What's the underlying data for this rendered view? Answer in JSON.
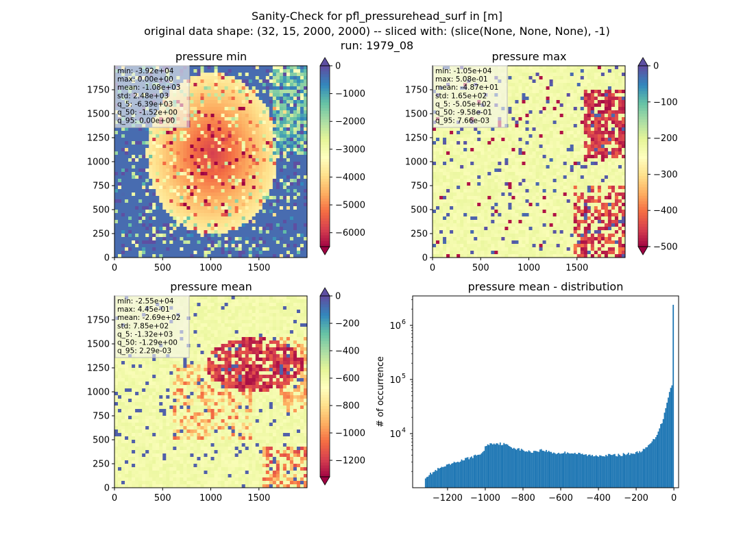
{
  "figure": {
    "title_lines": [
      "Sanity-Check for pfl_pressurehead_surf in [m]",
      "original data shape: (32, 15, 2000, 2000) -- sliced with: (slice(None, None, None), -1)",
      "run: 1979_08"
    ]
  },
  "colors": {
    "spectral": [
      "#9e0142",
      "#d53e4f",
      "#f46d43",
      "#fdae61",
      "#fee08b",
      "#ffffbf",
      "#e6f598",
      "#abdda4",
      "#66c2a5",
      "#3288bd",
      "#5e4fa2"
    ],
    "hist_bar": "#1f77b4"
  },
  "chart_data": [
    {
      "type": "heatmap",
      "title": "pressure min",
      "x_ticks": [
        "0",
        "500",
        "1000",
        "1500"
      ],
      "y_ticks": [
        "0",
        "250",
        "500",
        "750",
        "1000",
        "1250",
        "1500",
        "1750"
      ],
      "xlim": [
        0,
        2000
      ],
      "ylim": [
        0,
        2000
      ],
      "colorbar": {
        "vmin": -6500,
        "vmax": 0,
        "ticks": [
          "0",
          "−1000",
          "−2000",
          "−3000",
          "−4000",
          "−5000",
          "−6000"
        ],
        "tick_values": [
          0,
          -1000,
          -2000,
          -3000,
          -4000,
          -5000,
          -6000
        ],
        "extend": "both",
        "cmap": "Spectral"
      },
      "stats": [
        "min: -3.92e+04",
        "max: 0.00e+00",
        "mean: -1.08e+03",
        "std: 2.48e+03",
        "q_5: -6.39e+03",
        "q_50: -1.52e+00",
        "q_95: 0.00e+00"
      ]
    },
    {
      "type": "heatmap",
      "title": "pressure max",
      "x_ticks": [
        "0",
        "500",
        "1000",
        "1500"
      ],
      "y_ticks": [
        "0",
        "250",
        "500",
        "750",
        "1000",
        "1250",
        "1500",
        "1750"
      ],
      "xlim": [
        0,
        2000
      ],
      "ylim": [
        0,
        2000
      ],
      "colorbar": {
        "vmin": -500,
        "vmax": 0,
        "ticks": [
          "0",
          "−100",
          "−200",
          "−300",
          "−400",
          "−500"
        ],
        "tick_values": [
          0,
          -100,
          -200,
          -300,
          -400,
          -500
        ],
        "extend": "both",
        "cmap": "Spectral"
      },
      "stats": [
        "min: -1.05e+04",
        "max: 5.08e-01",
        "mean: -4.87e+01",
        "std: 1.65e+02",
        "q_5: -5.05e+02",
        "q_50: -9.58e-01",
        "q_95: 7.66e-03"
      ]
    },
    {
      "type": "heatmap",
      "title": "pressure mean",
      "x_ticks": [
        "0",
        "500",
        "1000",
        "1500"
      ],
      "y_ticks": [
        "0",
        "250",
        "500",
        "750",
        "1000",
        "1250",
        "1500",
        "1750"
      ],
      "xlim": [
        0,
        2000
      ],
      "ylim": [
        0,
        2000
      ],
      "colorbar": {
        "vmin": -1320,
        "vmax": 0,
        "ticks": [
          "0",
          "−200",
          "−400",
          "−600",
          "−800",
          "−1000",
          "−1200"
        ],
        "tick_values": [
          0,
          -200,
          -400,
          -600,
          -800,
          -1000,
          -1200
        ],
        "extend": "both",
        "cmap": "Spectral"
      },
      "stats": [
        "min: -2.55e+04",
        "max: 4.45e-01",
        "mean: -2.69e+02",
        "std: 7.85e+02",
        "q_5: -1.32e+03",
        "q_50: -1.29e+00",
        "q_95: 2.29e-03"
      ]
    },
    {
      "type": "bar",
      "title": "pressure mean - distribution",
      "xlabel": "",
      "ylabel": "# of occurrence",
      "yscale": "log",
      "xlim": [
        -1385,
        25
      ],
      "ylim": [
        1000,
        3500000
      ],
      "x_ticks": [
        "−1200",
        "−1000",
        "−800",
        "−600",
        "−400",
        "−200",
        "0"
      ],
      "x_tick_values": [
        -1200,
        -1000,
        -800,
        -600,
        -400,
        -200,
        0
      ],
      "y_ticks": [
        "10",
        "10",
        "10"
      ],
      "y_tick_exponents": [
        "4",
        "5",
        "6"
      ],
      "y_tick_values": [
        10000,
        100000,
        1000000
      ],
      "bin_range": [
        -1320,
        0
      ],
      "bins": 200,
      "profile": [
        [
          -1320,
          1550
        ],
        [
          -1250,
          2200
        ],
        [
          -1150,
          3000
        ],
        [
          -1050,
          3900
        ],
        [
          -1010,
          4500
        ],
        [
          -995,
          6200
        ],
        [
          -950,
          6700
        ],
        [
          -900,
          6400
        ],
        [
          -850,
          5500
        ],
        [
          -800,
          4900
        ],
        [
          -760,
          4600
        ],
        [
          -700,
          5000
        ],
        [
          -620,
          4300
        ],
        [
          -560,
          4500
        ],
        [
          -500,
          4200
        ],
        [
          -430,
          3900
        ],
        [
          -380,
          4000
        ],
        [
          -300,
          4000
        ],
        [
          -200,
          4400
        ],
        [
          -150,
          5200
        ],
        [
          -100,
          8200
        ],
        [
          -60,
          17000
        ],
        [
          -35,
          40000
        ],
        [
          -20,
          68000
        ],
        [
          -12,
          70000
        ],
        [
          -6,
          100000
        ],
        [
          -3,
          500000
        ],
        [
          0,
          2400000
        ]
      ]
    }
  ]
}
